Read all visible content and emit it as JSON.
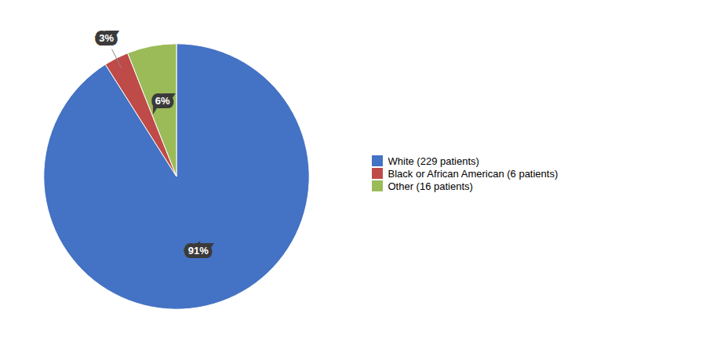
{
  "chart_data": {
    "type": "pie",
    "labels": [
      "White (229 patients)",
      "Black or African American (6 patients)",
      "Other (16 patients)"
    ],
    "values": [
      91,
      3,
      6
    ],
    "value_labels": [
      "91%",
      "3%",
      "6%"
    ],
    "colors": [
      "#4472C4",
      "#BE4B48",
      "#9BBB59"
    ],
    "data_labels": true,
    "legend": "right"
  }
}
